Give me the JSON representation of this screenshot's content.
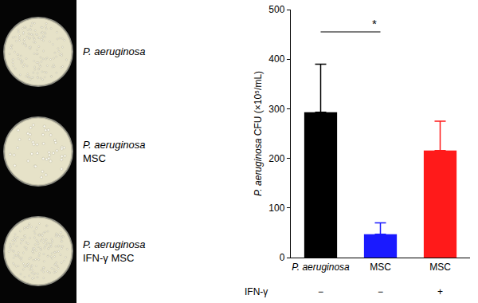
{
  "chart_data": {
    "type": "bar",
    "categories": [
      "P. aeruginosa",
      "MSC",
      "MSC"
    ],
    "values": [
      293,
      47,
      216
    ],
    "errors": [
      97,
      23,
      59
    ],
    "colors": [
      "#000000",
      "#1a1aff",
      "#ff1a1a"
    ],
    "ylabel": "P. aeruginosa CFU (×10⁵/mL)",
    "ylim": [
      0,
      500
    ],
    "yticks": [
      0,
      100,
      200,
      300,
      400,
      500
    ],
    "grid": false,
    "annotations": [
      {
        "text": "*",
        "between": [
          0,
          1
        ]
      }
    ],
    "row": {
      "label": "IFN-γ",
      "values": [
        "−",
        "−",
        "+"
      ]
    }
  },
  "plates": [
    {
      "lines": [
        "P. aeruginosa"
      ]
    },
    {
      "lines": [
        "P. aeruginosa",
        "MSC"
      ]
    },
    {
      "lines": [
        "P. aeruginosa",
        "IFN-γ MSC"
      ]
    }
  ]
}
